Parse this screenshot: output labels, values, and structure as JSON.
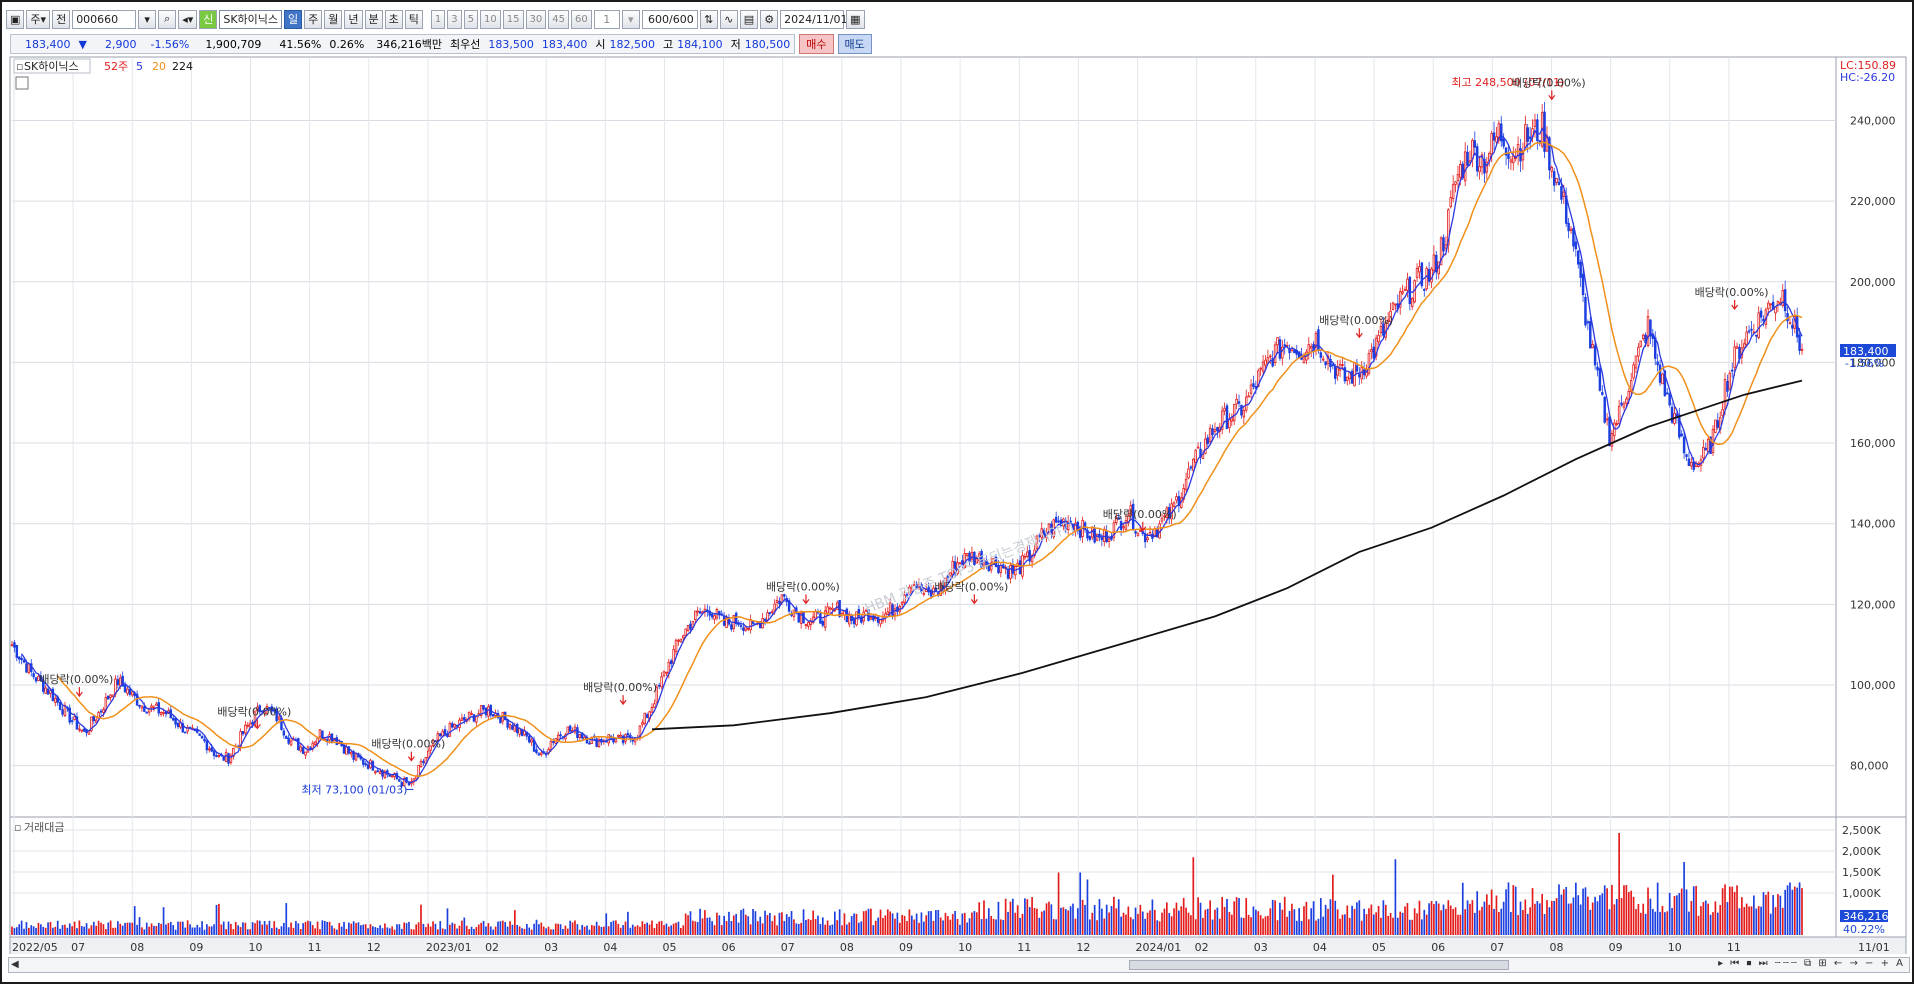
{
  "toolbar": {
    "mode": "주",
    "type": "전",
    "code": "000660",
    "name": "SK하이닉스",
    "period_selected": "일",
    "periods": [
      "주",
      "월",
      "년",
      "분",
      "초",
      "틱"
    ],
    "intervals": [
      "1",
      "3",
      "5",
      "10",
      "15",
      "30",
      "45",
      "60"
    ],
    "interval_value": "1",
    "count": "600/600",
    "date": "2024/11/01"
  },
  "quote": {
    "price": "183,400",
    "change": "2,900",
    "change_pct": "-1.56%",
    "volume": "1,900,709",
    "vol_ratio": "41.56%",
    "turnover": "0.26%",
    "amount": "346,216백만",
    "best_label": "최우선",
    "ask": "183,500",
    "bid": "183,400",
    "open_label": "시",
    "open": "182,500",
    "high_label": "고",
    "high": "184,100",
    "low_label": "저",
    "low": "180,500",
    "buy_label": "매수",
    "sell_label": "매도"
  },
  "legend": {
    "name": "SK하이닉스",
    "ma52": "52주",
    "ma5": "5",
    "ma20": "20",
    "ma224": "224",
    "lc": "LC:150.89",
    "hc": "HC:-26.20",
    "volume_title": "거래대금",
    "watermark": "HBM 관련주 TOP5 돈되는경제이야기"
  },
  "chart_data": {
    "type": "candlestick",
    "title": "SK하이닉스 일봉",
    "ylim": [
      68000,
      255000
    ],
    "y_ticks": [
      "240,000",
      "220,000",
      "200,000",
      "180,000",
      "160,000",
      "140,000",
      "120,000",
      "100,000",
      "80,000"
    ],
    "y_tick_values": [
      240000,
      220000,
      200000,
      180000,
      160000,
      140000,
      120000,
      100000,
      80000
    ],
    "x_labels": [
      "2022/05",
      "07",
      "08",
      "09",
      "10",
      "11",
      "12",
      "2023/01",
      "02",
      "03",
      "04",
      "05",
      "06",
      "07",
      "08",
      "09",
      "10",
      "11",
      "12",
      "2024/01",
      "02",
      "03",
      "04",
      "05",
      "06",
      "07",
      "08",
      "09",
      "10",
      "11",
      "11/01"
    ],
    "close_trend": [
      [
        0,
        110000
      ],
      [
        8,
        103000
      ],
      [
        16,
        98000
      ],
      [
        24,
        92000
      ],
      [
        30,
        88000
      ],
      [
        36,
        93000
      ],
      [
        44,
        101000
      ],
      [
        54,
        95000
      ],
      [
        64,
        93000
      ],
      [
        72,
        89000
      ],
      [
        80,
        86000
      ],
      [
        86,
        82000
      ],
      [
        90,
        82000
      ],
      [
        96,
        88000
      ],
      [
        104,
        95000
      ],
      [
        110,
        92000
      ],
      [
        116,
        86000
      ],
      [
        122,
        84000
      ],
      [
        128,
        88000
      ],
      [
        134,
        87000
      ],
      [
        142,
        82000
      ],
      [
        150,
        80000
      ],
      [
        156,
        78000
      ],
      [
        162,
        76000
      ],
      [
        166,
        75000
      ],
      [
        170,
        80000
      ],
      [
        176,
        86000
      ],
      [
        182,
        89000
      ],
      [
        190,
        92000
      ],
      [
        198,
        94000
      ],
      [
        206,
        91000
      ],
      [
        214,
        87000
      ],
      [
        220,
        82000
      ],
      [
        224,
        86000
      ],
      [
        230,
        89000
      ],
      [
        236,
        88000
      ],
      [
        242,
        86000
      ],
      [
        248,
        87000
      ],
      [
        254,
        86000
      ],
      [
        260,
        88000
      ],
      [
        266,
        95000
      ],
      [
        272,
        104000
      ],
      [
        278,
        112000
      ],
      [
        284,
        117000
      ],
      [
        290,
        119000
      ],
      [
        296,
        115000
      ],
      [
        302,
        116000
      ],
      [
        308,
        114000
      ],
      [
        314,
        118000
      ],
      [
        320,
        122000
      ],
      [
        326,
        118000
      ],
      [
        332,
        116000
      ],
      [
        338,
        117000
      ],
      [
        344,
        119000
      ],
      [
        350,
        116000
      ],
      [
        356,
        118000
      ],
      [
        362,
        117000
      ],
      [
        368,
        120000
      ],
      [
        374,
        126000
      ],
      [
        380,
        122000
      ],
      [
        386,
        124000
      ],
      [
        392,
        130000
      ],
      [
        398,
        132000
      ],
      [
        404,
        131000
      ],
      [
        410,
        130000
      ],
      [
        416,
        128000
      ],
      [
        422,
        131000
      ],
      [
        428,
        137000
      ],
      [
        434,
        140000
      ],
      [
        440,
        141000
      ],
      [
        446,
        138000
      ],
      [
        452,
        136000
      ],
      [
        458,
        139000
      ],
      [
        464,
        143000
      ],
      [
        470,
        137000
      ],
      [
        476,
        139000
      ],
      [
        482,
        143000
      ],
      [
        488,
        151000
      ],
      [
        494,
        158000
      ],
      [
        500,
        164000
      ],
      [
        506,
        167000
      ],
      [
        512,
        169000
      ],
      [
        518,
        176000
      ],
      [
        524,
        182000
      ],
      [
        530,
        185000
      ],
      [
        536,
        183000
      ],
      [
        542,
        186000
      ],
      [
        548,
        180000
      ],
      [
        554,
        176000
      ],
      [
        560,
        178000
      ],
      [
        566,
        183000
      ],
      [
        572,
        190000
      ],
      [
        578,
        196000
      ],
      [
        584,
        200000
      ],
      [
        590,
        202000
      ],
      [
        596,
        212000
      ],
      [
        600,
        225000
      ],
      [
        606,
        233000
      ],
      [
        612,
        230000
      ],
      [
        618,
        237000
      ],
      [
        624,
        232000
      ],
      [
        630,
        236000
      ],
      [
        636,
        238000
      ],
      [
        640,
        229000
      ],
      [
        644,
        221000
      ],
      [
        648,
        213000
      ],
      [
        652,
        199000
      ],
      [
        656,
        185000
      ],
      [
        660,
        172000
      ],
      [
        664,
        162000
      ],
      [
        668,
        167000
      ],
      [
        672,
        175000
      ],
      [
        676,
        182000
      ],
      [
        680,
        189000
      ],
      [
        684,
        179000
      ],
      [
        688,
        171000
      ],
      [
        692,
        164000
      ],
      [
        696,
        156000
      ],
      [
        700,
        155000
      ],
      [
        704,
        157000
      ],
      [
        708,
        163000
      ],
      [
        712,
        174000
      ],
      [
        716,
        181000
      ],
      [
        720,
        186000
      ],
      [
        724,
        189000
      ],
      [
        728,
        192000
      ],
      [
        732,
        195000
      ],
      [
        736,
        197000
      ],
      [
        740,
        190000
      ],
      [
        744,
        183400
      ]
    ],
    "ma224": [
      [
        266,
        89000
      ],
      [
        300,
        90000
      ],
      [
        340,
        93000
      ],
      [
        380,
        97000
      ],
      [
        420,
        103000
      ],
      [
        460,
        110000
      ],
      [
        500,
        117000
      ],
      [
        530,
        124000
      ],
      [
        560,
        133000
      ],
      [
        590,
        139000
      ],
      [
        620,
        147000
      ],
      [
        650,
        156000
      ],
      [
        680,
        164000
      ],
      [
        700,
        168000
      ],
      [
        720,
        172000
      ],
      [
        744,
        175500
      ]
    ],
    "annotations": [
      {
        "text": "최고 248,500 (07/11)",
        "i": 644,
        "y": 248500,
        "color": "#e02020"
      },
      {
        "text": "최저 73,100 (01/03)",
        "i": 166,
        "y": 73100,
        "color": "#1a3bd8"
      },
      {
        "text": "배당락(0.00%)",
        "i": 28,
        "y": 97000
      },
      {
        "text": "배당락(0.00%)",
        "i": 102,
        "y": 89000
      },
      {
        "text": "배당락(0.00%)",
        "i": 166,
        "y": 81000
      },
      {
        "text": "배당락(0.00%)",
        "i": 254,
        "y": 95000
      },
      {
        "text": "배당락(0.00%)",
        "i": 330,
        "y": 120000
      },
      {
        "text": "배당락(0.00%)",
        "i": 400,
        "y": 120000
      },
      {
        "text": "배당락(0.00%)",
        "i": 470,
        "y": 138000
      },
      {
        "text": "배당락(0.00%)",
        "i": 560,
        "y": 186000
      },
      {
        "text": "배당락(0.00%)",
        "i": 640,
        "y": 245000
      },
      {
        "text": "배당락(0.00%)",
        "i": 716,
        "y": 193000
      }
    ],
    "current_price": "183,400",
    "current_change": "-1.56%",
    "volume_ticks": [
      "2,500K",
      "2,000K",
      "1,500K",
      "1,000K"
    ],
    "volume_tick_values": [
      2500,
      2000,
      1500,
      1000
    ],
    "volume_current": "346,216",
    "volume_ratio": "40.22%",
    "volume_max": 2500
  }
}
